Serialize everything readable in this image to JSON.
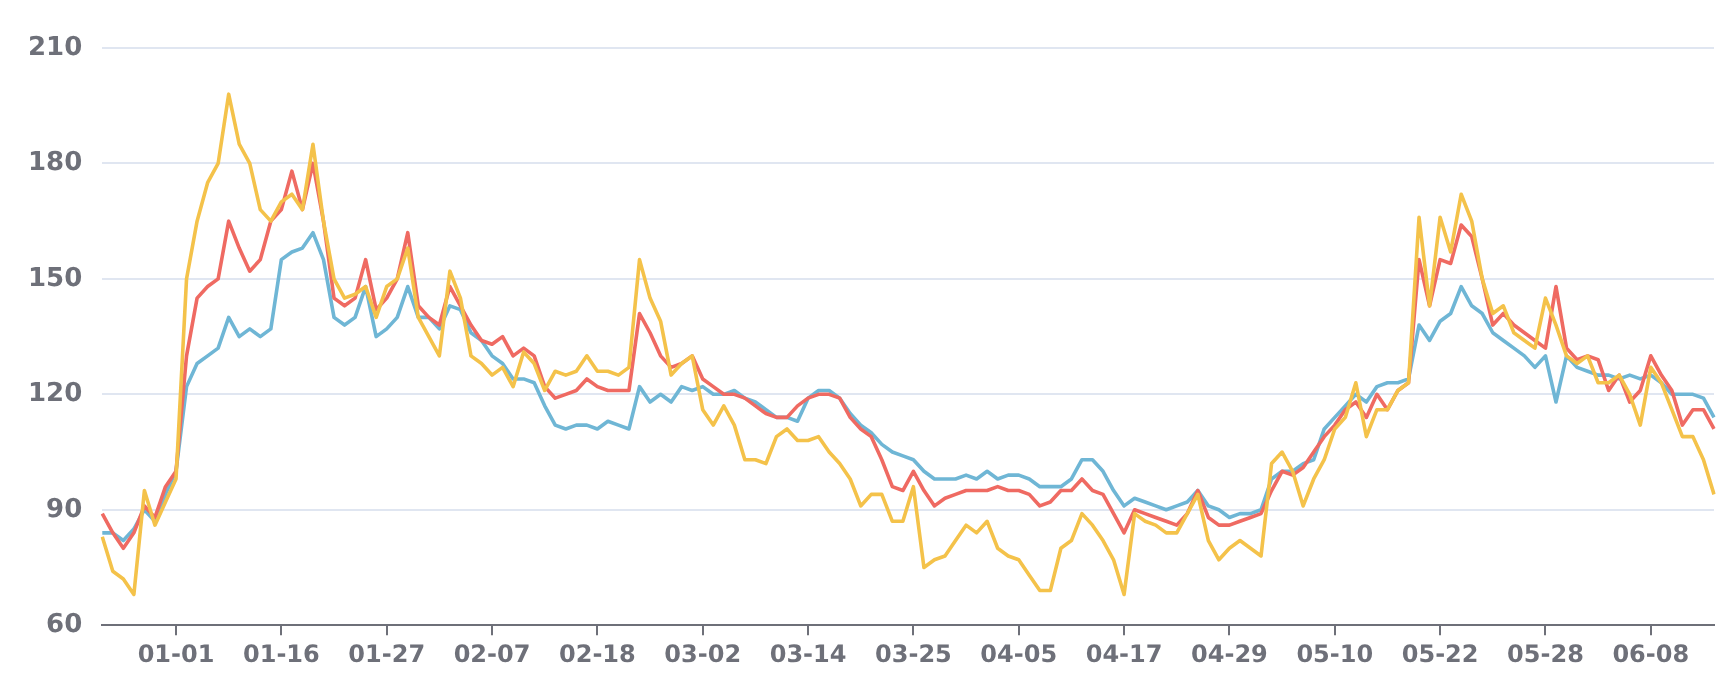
{
  "chart_data": {
    "type": "line",
    "categories": [
      null,
      null,
      null,
      null,
      null,
      null,
      null,
      "01-01",
      null,
      null,
      null,
      null,
      null,
      null,
      null,
      null,
      null,
      "01-16",
      null,
      null,
      null,
      null,
      null,
      null,
      null,
      null,
      null,
      "01-27",
      null,
      null,
      null,
      null,
      null,
      null,
      null,
      null,
      null,
      "02-07",
      null,
      null,
      null,
      null,
      null,
      null,
      null,
      null,
      null,
      "02-18",
      null,
      null,
      null,
      null,
      null,
      null,
      null,
      null,
      null,
      "03-02",
      null,
      null,
      null,
      null,
      null,
      null,
      null,
      null,
      null,
      "03-14",
      null,
      null,
      null,
      null,
      null,
      null,
      null,
      null,
      null,
      "03-25",
      null,
      null,
      null,
      null,
      null,
      null,
      null,
      null,
      null,
      "04-05",
      null,
      null,
      null,
      null,
      null,
      null,
      null,
      null,
      null,
      "04-17",
      null,
      null,
      null,
      null,
      null,
      null,
      null,
      null,
      null,
      "04-29",
      null,
      null,
      null,
      null,
      null,
      null,
      null,
      null,
      null,
      "05-10",
      null,
      null,
      null,
      null,
      null,
      null,
      null,
      null,
      null,
      "05-22",
      null,
      null,
      null,
      null,
      null,
      null,
      null,
      null,
      null,
      "05-28",
      null,
      null,
      null,
      null,
      null,
      null,
      null,
      null,
      null,
      "06-08",
      null,
      null,
      null,
      null,
      null,
      null
    ],
    "series": [
      {
        "color": "#f4c24a",
        "values": [
          83,
          74,
          72,
          68,
          95,
          86,
          92,
          98,
          150,
          165,
          175,
          180,
          198,
          185,
          180,
          168,
          165,
          170,
          172,
          168,
          185,
          165,
          150,
          145,
          146,
          148,
          140,
          148,
          150,
          158,
          140,
          135,
          130,
          152,
          145,
          130,
          128,
          125,
          127,
          122,
          131,
          128,
          121,
          126,
          125,
          126,
          130,
          126,
          126,
          125,
          127,
          155,
          145,
          139,
          125,
          128,
          130,
          116,
          112,
          117,
          112,
          103,
          103,
          102,
          109,
          111,
          108,
          108,
          109,
          105,
          102,
          98,
          91,
          94,
          94,
          87,
          87,
          96,
          75,
          77,
          78,
          82,
          86,
          84,
          87,
          80,
          78,
          77,
          73,
          69,
          69,
          80,
          82,
          89,
          86,
          82,
          77,
          68,
          89,
          87,
          86,
          84,
          84,
          89,
          94,
          82,
          77,
          80,
          82,
          80,
          78,
          102,
          105,
          100,
          91,
          98,
          103,
          111,
          114,
          123,
          109,
          116,
          116,
          121,
          123,
          166,
          143,
          166,
          157,
          172,
          165,
          150,
          141,
          143,
          136,
          134,
          132,
          145,
          138,
          130,
          128,
          130,
          123,
          123,
          125,
          120,
          112,
          127,
          123,
          116,
          109,
          109,
          103,
          94
        ]
      },
      {
        "color": "#ef6a62",
        "values": [
          89,
          84,
          80,
          84,
          91,
          88,
          96,
          100,
          130,
          145,
          148,
          150,
          165,
          158,
          152,
          155,
          165,
          168,
          178,
          168,
          180,
          165,
          145,
          143,
          145,
          155,
          142,
          145,
          150,
          162,
          143,
          140,
          138,
          148,
          143,
          138,
          134,
          133,
          135,
          130,
          132,
          130,
          122,
          119,
          120,
          121,
          124,
          122,
          121,
          121,
          121,
          141,
          136,
          130,
          127,
          128,
          130,
          124,
          122,
          120,
          120,
          119,
          117,
          115,
          114,
          114,
          117,
          119,
          120,
          120,
          119,
          114,
          111,
          109,
          103,
          96,
          95,
          100,
          95,
          91,
          93,
          94,
          95,
          95,
          95,
          96,
          95,
          95,
          94,
          91,
          92,
          95,
          95,
          98,
          95,
          94,
          89,
          84,
          90,
          89,
          88,
          87,
          86,
          89,
          95,
          88,
          86,
          86,
          87,
          88,
          89,
          95,
          100,
          99,
          101,
          105,
          109,
          112,
          116,
          118,
          114,
          120,
          116,
          121,
          123,
          155,
          143,
          155,
          154,
          164,
          161,
          150,
          138,
          141,
          138,
          136,
          134,
          132,
          148,
          132,
          129,
          130,
          129,
          121,
          125,
          118,
          121,
          130,
          125,
          121,
          112,
          116,
          116,
          111
        ]
      },
      {
        "color": "#6fb6d5",
        "values": [
          84,
          84,
          82,
          85,
          90,
          87,
          94,
          100,
          122,
          128,
          130,
          132,
          140,
          135,
          137,
          135,
          137,
          155,
          157,
          158,
          162,
          155,
          140,
          138,
          140,
          148,
          135,
          137,
          140,
          148,
          140,
          140,
          137,
          143,
          142,
          136,
          134,
          130,
          128,
          124,
          124,
          123,
          117,
          112,
          111,
          112,
          112,
          111,
          113,
          112,
          111,
          122,
          118,
          120,
          118,
          122,
          121,
          122,
          120,
          120,
          121,
          119,
          118,
          116,
          114,
          114,
          113,
          119,
          121,
          121,
          119,
          115,
          112,
          110,
          107,
          105,
          104,
          103,
          100,
          98,
          98,
          98,
          99,
          98,
          100,
          98,
          99,
          99,
          98,
          96,
          96,
          96,
          98,
          103,
          103,
          100,
          95,
          91,
          93,
          92,
          91,
          90,
          91,
          92,
          95,
          91,
          90,
          88,
          89,
          89,
          90,
          98,
          100,
          100,
          102,
          103,
          111,
          114,
          117,
          120,
          118,
          122,
          123,
          123,
          124,
          138,
          134,
          139,
          141,
          148,
          143,
          141,
          136,
          134,
          132,
          130,
          127,
          130,
          118,
          130,
          127,
          126,
          125,
          125,
          124,
          125,
          124,
          125,
          123,
          120,
          120,
          120,
          119,
          114
        ]
      }
    ],
    "ylim": [
      60,
      210
    ],
    "yticks": [
      60,
      90,
      120,
      150,
      180,
      210
    ],
    "grid": "y",
    "legend": false,
    "marker": "none",
    "line_style": "solid"
  }
}
